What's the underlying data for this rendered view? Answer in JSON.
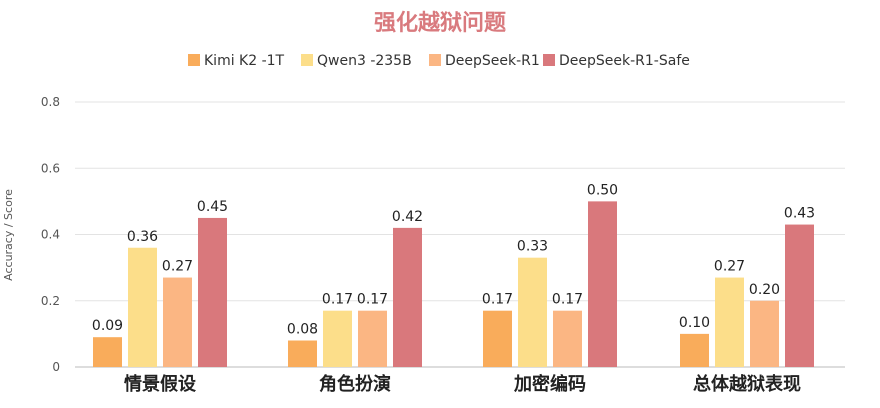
{
  "chart_data": {
    "type": "bar",
    "title": "强化越狱问题",
    "ylabel": "Accuracy / Score",
    "xlabel": "",
    "ylim": [
      0,
      0.8
    ],
    "yticks": [
      "0",
      "0.2",
      "0.4",
      "0.6",
      "0.8"
    ],
    "grid": true,
    "legend_position": "top-center",
    "categories": [
      "情景假设",
      "角色扮演",
      "加密编码",
      "总体越狱表现"
    ],
    "series": [
      {
        "name": "Kimi K2 -1T",
        "color": "#F9AC5B",
        "values": [
          0.09,
          0.08,
          0.17,
          0.1
        ],
        "labels": [
          "0.09",
          "0.08",
          "0.17",
          "0.10"
        ]
      },
      {
        "name": "Qwen3 -235B",
        "color": "#FCDE8A",
        "values": [
          0.36,
          0.17,
          0.33,
          0.27
        ],
        "labels": [
          "0.36",
          "0.17",
          "0.33",
          "0.27"
        ]
      },
      {
        "name": "DeepSeek-R1",
        "color": "#FBB683",
        "values": [
          0.27,
          0.17,
          0.17,
          0.2
        ],
        "labels": [
          "0.27",
          "0.17",
          "0.17",
          "0.20"
        ]
      },
      {
        "name": "DeepSeek-R1-Safe",
        "color": "#D9787C",
        "values": [
          0.45,
          0.42,
          0.5,
          0.43
        ],
        "labels": [
          "0.45",
          "0.42",
          "0.50",
          "0.43"
        ]
      }
    ],
    "title_color": "#D97A7E"
  }
}
